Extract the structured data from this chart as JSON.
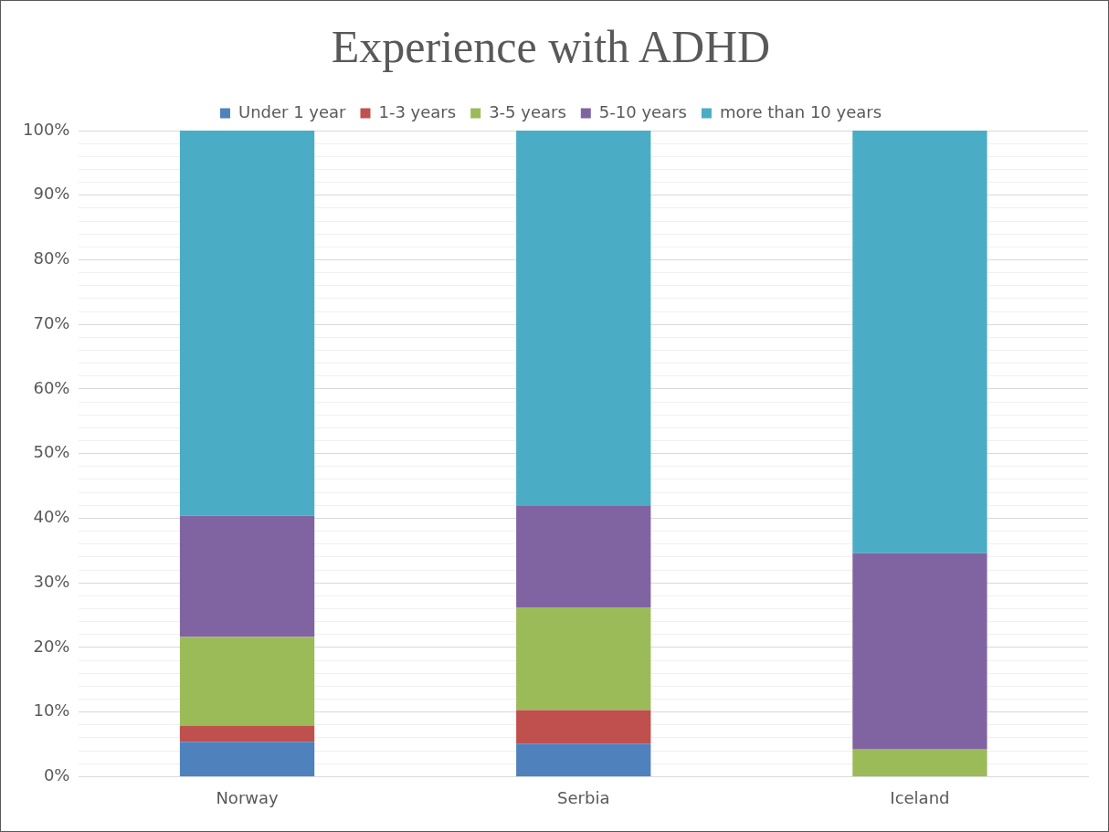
{
  "chart_data": {
    "type": "bar",
    "title": "Experience with ADHD",
    "categories": [
      "Norway",
      "Serbia",
      "Iceland"
    ],
    "stacked": true,
    "series": [
      {
        "name": "Under 1 year",
        "color": "#4f81bd",
        "values": [
          5.4,
          5.1,
          0
        ]
      },
      {
        "name": "1-3 years",
        "color": "#c0504d",
        "values": [
          2.5,
          5.2,
          0
        ]
      },
      {
        "name": "3-5 years",
        "color": "#9bbb59",
        "values": [
          13.7,
          15.9,
          4.3
        ]
      },
      {
        "name": "5-10 years",
        "color": "#8064a2",
        "values": [
          18.8,
          15.7,
          30.3
        ]
      },
      {
        "name": "more than 10 years",
        "color": "#4bacc6",
        "values": [
          59.6,
          58.1,
          65.4
        ]
      }
    ],
    "ylim": [
      0,
      100
    ],
    "yticks": [
      {
        "value": 0,
        "label": "0%"
      },
      {
        "value": 2,
        "label": null
      },
      {
        "value": 4,
        "label": null
      },
      {
        "value": 6,
        "label": null
      },
      {
        "value": 8,
        "label": null
      },
      {
        "value": 10,
        "label": "10%"
      },
      {
        "value": 12,
        "label": null
      },
      {
        "value": 14,
        "label": null
      },
      {
        "value": 16,
        "label": null
      },
      {
        "value": 18,
        "label": null
      },
      {
        "value": 20,
        "label": "20%"
      },
      {
        "value": 22,
        "label": null
      },
      {
        "value": 24,
        "label": null
      },
      {
        "value": 26,
        "label": null
      },
      {
        "value": 28,
        "label": null
      },
      {
        "value": 30,
        "label": "30%"
      },
      {
        "value": 32,
        "label": null
      },
      {
        "value": 34,
        "label": null
      },
      {
        "value": 36,
        "label": null
      },
      {
        "value": 38,
        "label": null
      },
      {
        "value": 40,
        "label": "40%"
      },
      {
        "value": 42,
        "label": null
      },
      {
        "value": 44,
        "label": null
      },
      {
        "value": 46,
        "label": null
      },
      {
        "value": 48,
        "label": null
      },
      {
        "value": 50,
        "label": "50%"
      },
      {
        "value": 52,
        "label": null
      },
      {
        "value": 54,
        "label": null
      },
      {
        "value": 56,
        "label": null
      },
      {
        "value": 58,
        "label": null
      },
      {
        "value": 60,
        "label": "60%"
      },
      {
        "value": 62,
        "label": null
      },
      {
        "value": 64,
        "label": null
      },
      {
        "value": 66,
        "label": null
      },
      {
        "value": 68,
        "label": null
      },
      {
        "value": 70,
        "label": "70%"
      },
      {
        "value": 72,
        "label": null
      },
      {
        "value": 74,
        "label": null
      },
      {
        "value": 76,
        "label": null
      },
      {
        "value": 78,
        "label": null
      },
      {
        "value": 80,
        "label": "80%"
      },
      {
        "value": 82,
        "label": null
      },
      {
        "value": 84,
        "label": null
      },
      {
        "value": 86,
        "label": null
      },
      {
        "value": 88,
        "label": null
      },
      {
        "value": 90,
        "label": "90%"
      },
      {
        "value": 92,
        "label": null
      },
      {
        "value": 94,
        "label": null
      },
      {
        "value": 96,
        "label": null
      },
      {
        "value": 98,
        "label": null
      },
      {
        "value": 100,
        "label": "100%"
      }
    ],
    "grid": "y",
    "legend": "top"
  }
}
